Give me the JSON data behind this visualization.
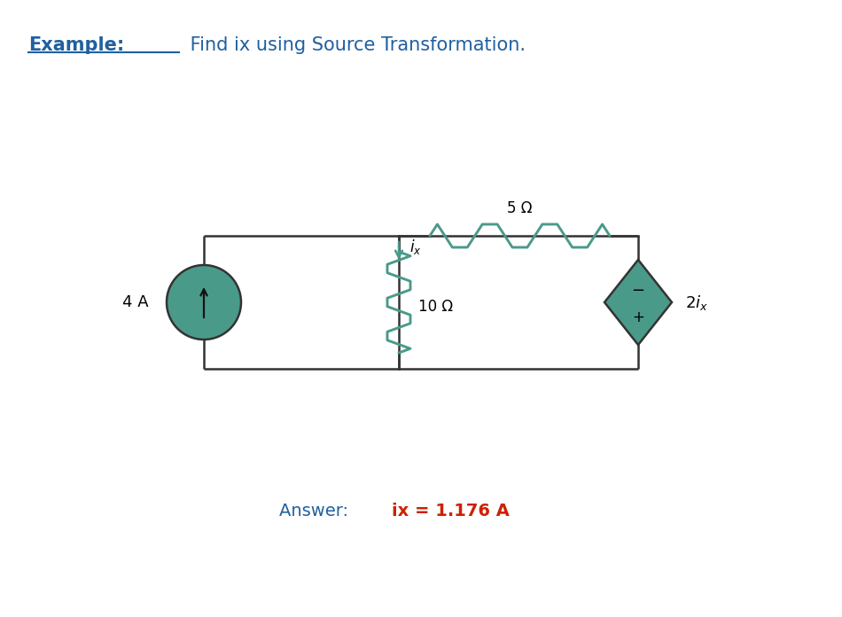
{
  "title_example": "Example:",
  "title_rest": " Find ix using Source Transformation.",
  "answer_prefix": "Answer: ",
  "answer_value": "ix = 1.176 A",
  "bg_color": "#ffffff",
  "circuit_color": "#4a9a8a",
  "wire_color": "#333333",
  "title_color": "#2060a0",
  "answer_prefix_color": "#2060a0",
  "answer_value_color": "#cc2200",
  "label_5ohm": "5 Ω",
  "label_10ohm": "10 Ω",
  "label_4A": "4 A",
  "label_2ix": "2i_x",
  "label_ix": "i_x"
}
